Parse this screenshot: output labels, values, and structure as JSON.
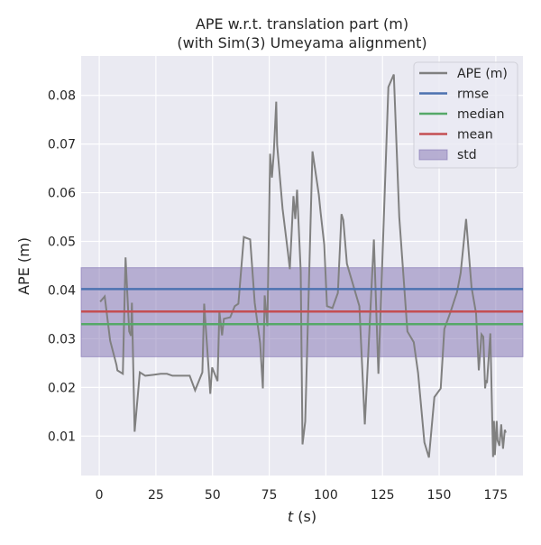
{
  "chart_data": {
    "type": "line",
    "title": "APE w.r.t. translation part (m)",
    "subtitle": "(with Sim(3) Umeyama alignment)",
    "xlabel_italic": "t",
    "xlabel_unit": " (s)",
    "ylabel": "APE (m)",
    "xlim": [
      -8,
      187
    ],
    "ylim": [
      0.0019,
      0.0881
    ],
    "xticks": [
      0,
      25,
      50,
      75,
      100,
      125,
      150,
      175
    ],
    "yticks": [
      0.01,
      0.02,
      0.03,
      0.04,
      0.05,
      0.06,
      0.07,
      0.08
    ],
    "ytick_labels": [
      "0.01",
      "0.02",
      "0.03",
      "0.04",
      "0.05",
      "0.06",
      "0.07",
      "0.08"
    ],
    "grid": true,
    "legend_placement": "top-right",
    "background_color": "#eaeaf2",
    "series": [
      {
        "name": "APE (m)",
        "color": "#808080",
        "x": [
          0.4,
          2.4,
          4.8,
          7.6,
          8.0,
          10.4,
          11.6,
          13.2,
          14.0,
          14.4,
          15.6,
          17.9,
          20.3,
          23.9,
          27.1,
          29.9,
          32.3,
          35.9,
          39.9,
          42.3,
          45.5,
          46.3,
          49.0,
          49.8,
          52.2,
          53.0,
          54.2,
          55.0,
          57.8,
          59.8,
          61.4,
          63.8,
          66.6,
          68.6,
          71.0,
          72.2,
          73.0,
          74.2,
          75.4,
          76.2,
          77.0,
          78.1,
          78.5,
          80.9,
          83.3,
          84.1,
          85.7,
          86.5,
          87.3,
          88.9,
          89.7,
          90.9,
          94.1,
          96.9,
          97.7,
          99.3,
          100.5,
          102.9,
          105.3,
          106.9,
          107.7,
          109.3,
          114.8,
          117.2,
          121.2,
          123.2,
          127.6,
          130.0,
          132.4,
          136.0,
          138.8,
          140.7,
          143.5,
          145.5,
          147.9,
          150.7,
          152.3,
          155.1,
          157.9,
          159.5,
          161.9,
          164.3,
          166.3,
          167.5,
          168.7,
          169.5,
          170.3,
          170.7,
          171.1,
          172.6,
          173.8,
          174.2,
          174.6,
          175.4,
          175.8,
          176.6,
          177.4,
          178.2,
          179.0,
          179.4
        ],
        "y": [
          0.0376,
          0.0387,
          0.0296,
          0.0246,
          0.0235,
          0.0228,
          0.0467,
          0.0315,
          0.0306,
          0.0374,
          0.0109,
          0.0231,
          0.0224,
          0.0226,
          0.0228,
          0.0228,
          0.0224,
          0.0224,
          0.0224,
          0.0194,
          0.0231,
          0.0372,
          0.0187,
          0.0241,
          0.0213,
          0.0356,
          0.0307,
          0.0341,
          0.0344,
          0.0367,
          0.0372,
          0.0509,
          0.0504,
          0.0374,
          0.0291,
          0.0198,
          0.0389,
          0.0326,
          0.068,
          0.0631,
          0.068,
          0.0787,
          0.0698,
          0.0567,
          0.0476,
          0.0443,
          0.0593,
          0.0546,
          0.0606,
          0.0439,
          0.0083,
          0.013,
          0.0685,
          0.0596,
          0.0559,
          0.0493,
          0.0367,
          0.0363,
          0.0394,
          0.0556,
          0.0544,
          0.0454,
          0.0367,
          0.0124,
          0.0504,
          0.0228,
          0.0817,
          0.0843,
          0.055,
          0.0315,
          0.0293,
          0.023,
          0.0087,
          0.0056,
          0.018,
          0.0198,
          0.032,
          0.0356,
          0.0396,
          0.0435,
          0.0546,
          0.0406,
          0.0352,
          0.0235,
          0.0309,
          0.0304,
          0.0198,
          0.0215,
          0.0209,
          0.0311,
          0.0057,
          0.0131,
          0.0061,
          0.0131,
          0.0091,
          0.008,
          0.0124,
          0.0074,
          0.0113,
          0.0107
        ]
      },
      {
        "name": "rmse",
        "color": "#4c72b0",
        "value": 0.0402
      },
      {
        "name": "median",
        "color": "#55a868",
        "value": 0.033
      },
      {
        "name": "mean",
        "color": "#c44e52",
        "value": 0.0356
      },
      {
        "name": "std",
        "color": "#8172b2",
        "range": [
          0.0263,
          0.0446
        ]
      }
    ]
  }
}
